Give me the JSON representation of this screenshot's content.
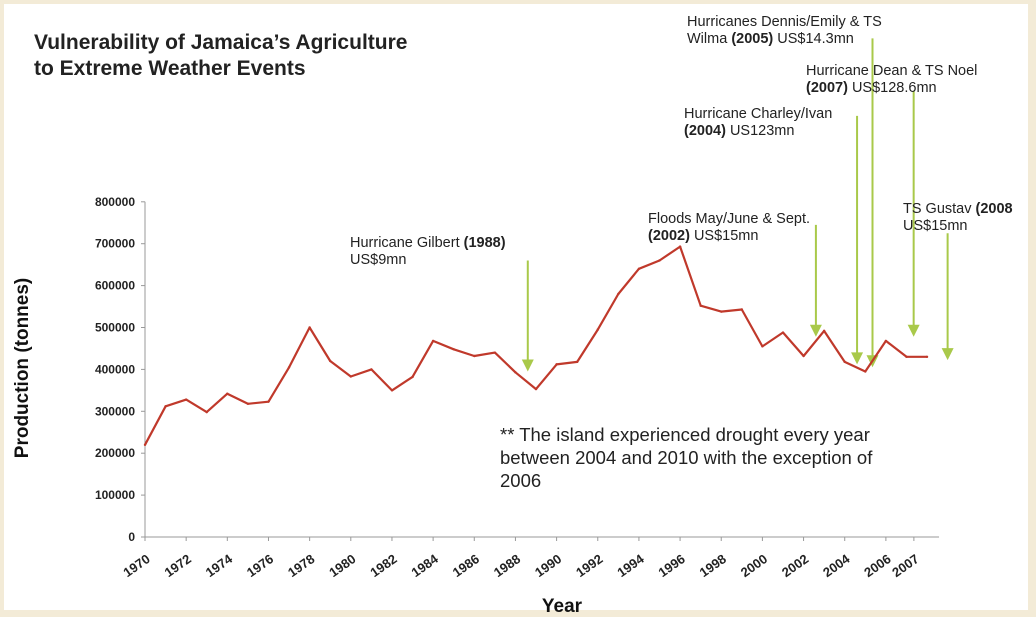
{
  "colors": {
    "frame": "#f3ebd7",
    "line": "#c0392b",
    "arrow": "#a9c94a",
    "text": "#222222"
  },
  "chart_data": {
    "type": "line",
    "title_line1": "Vulnerability of Jamaica’s Agriculture",
    "title_line2": "to Extreme Weather Events",
    "xlabel": "Year",
    "ylabel": "Production (tonnes)",
    "ylim": [
      0,
      800000
    ],
    "yticks": [
      "0",
      "100000",
      "200000",
      "300000",
      "400000",
      "500000",
      "600000",
      "700000",
      "800000"
    ],
    "xticks": [
      "1970",
      "1972",
      "1974",
      "1976",
      "1978",
      "1980",
      "1982",
      "1984",
      "1986",
      "1988",
      "1990",
      "1992",
      "1994",
      "1996",
      "1998",
      "2000",
      "2002",
      "2004",
      "2006",
      "2007"
    ],
    "grid": false,
    "legend": "none",
    "x": [
      1970,
      1971,
      1972,
      1973,
      1974,
      1975,
      1976,
      1977,
      1978,
      1979,
      1980,
      1981,
      1982,
      1983,
      1984,
      1985,
      1986,
      1987,
      1988,
      1989,
      1990,
      1991,
      1992,
      1993,
      1994,
      1995,
      1996,
      1997,
      1998,
      1999,
      2000,
      2001,
      2002,
      2003,
      2004,
      2005,
      2006,
      2007,
      2008
    ],
    "values": [
      220000,
      312000,
      328000,
      298000,
      342000,
      318000,
      323000,
      405000,
      500000,
      420000,
      383000,
      400000,
      350000,
      382000,
      468000,
      448000,
      432000,
      440000,
      393000,
      353000,
      412000,
      418000,
      495000,
      580000,
      640000,
      660000,
      693000,
      552000,
      538000,
      543000,
      455000,
      488000,
      432000,
      492000,
      418000,
      395000,
      468000,
      430000,
      430000
    ],
    "annotations": [
      {
        "lines": [
          [
            {
              "t": "Hurricane Gilbert ",
              "b": false
            },
            {
              "t": "(1988)",
              "b": true
            }
          ],
          [
            {
              "t": "US$9mn",
              "b": false
            }
          ]
        ],
        "arrow_x": 1988.6,
        "arrow_top": 660000,
        "arrow_to": 395000
      },
      {
        "lines": [
          [
            {
              "t": "Floods May/June & Sept.",
              "b": false
            }
          ],
          [
            {
              "t": "(2002)",
              "b": true
            },
            {
              "t": " US$15mn",
              "b": false
            }
          ]
        ],
        "arrow_x": 2002.6,
        "arrow_top": 745000,
        "arrow_to": 478000
      },
      {
        "lines": [
          [
            {
              "t": "Hurricane Charley/Ivan",
              "b": false
            }
          ],
          [
            {
              "t": "(2004)",
              "b": true
            },
            {
              "t": " US123mn",
              "b": false
            }
          ]
        ],
        "arrow_x": 2004.6,
        "arrow_top": 1005000,
        "arrow_to": 412000
      },
      {
        "lines": [
          [
            {
              "t": "Hurricanes Dennis/Emily & TS",
              "b": false
            }
          ],
          [
            {
              "t": "Wilma ",
              "b": false
            },
            {
              "t": "(2005)",
              "b": true
            },
            {
              "t": " US$14.3mn",
              "b": false
            }
          ]
        ],
        "arrow_x": 2005.35,
        "arrow_top": 1190000,
        "arrow_to": 405000
      },
      {
        "lines": [
          [
            {
              "t": "Hurricane Dean & TS Noel",
              "b": false
            }
          ],
          [
            {
              "t": "(2007)",
              "b": true
            },
            {
              "t": " US$128.6mn",
              "b": false
            }
          ]
        ],
        "arrow_x": 2007.35,
        "arrow_top": 1065000,
        "arrow_to": 478000
      },
      {
        "lines": [
          [
            {
              "t": "TS Gustav ",
              "b": false
            },
            {
              "t": "(2008",
              "b": true
            }
          ],
          [
            {
              "t": "US$15mn",
              "b": false
            }
          ]
        ],
        "arrow_x": 2009.0,
        "arrow_top": 725000,
        "arrow_to": 422000
      }
    ],
    "note_lines": [
      "** The island experienced drought every year",
      "between 2004 and 2010 with the exception of",
      "2006"
    ]
  }
}
